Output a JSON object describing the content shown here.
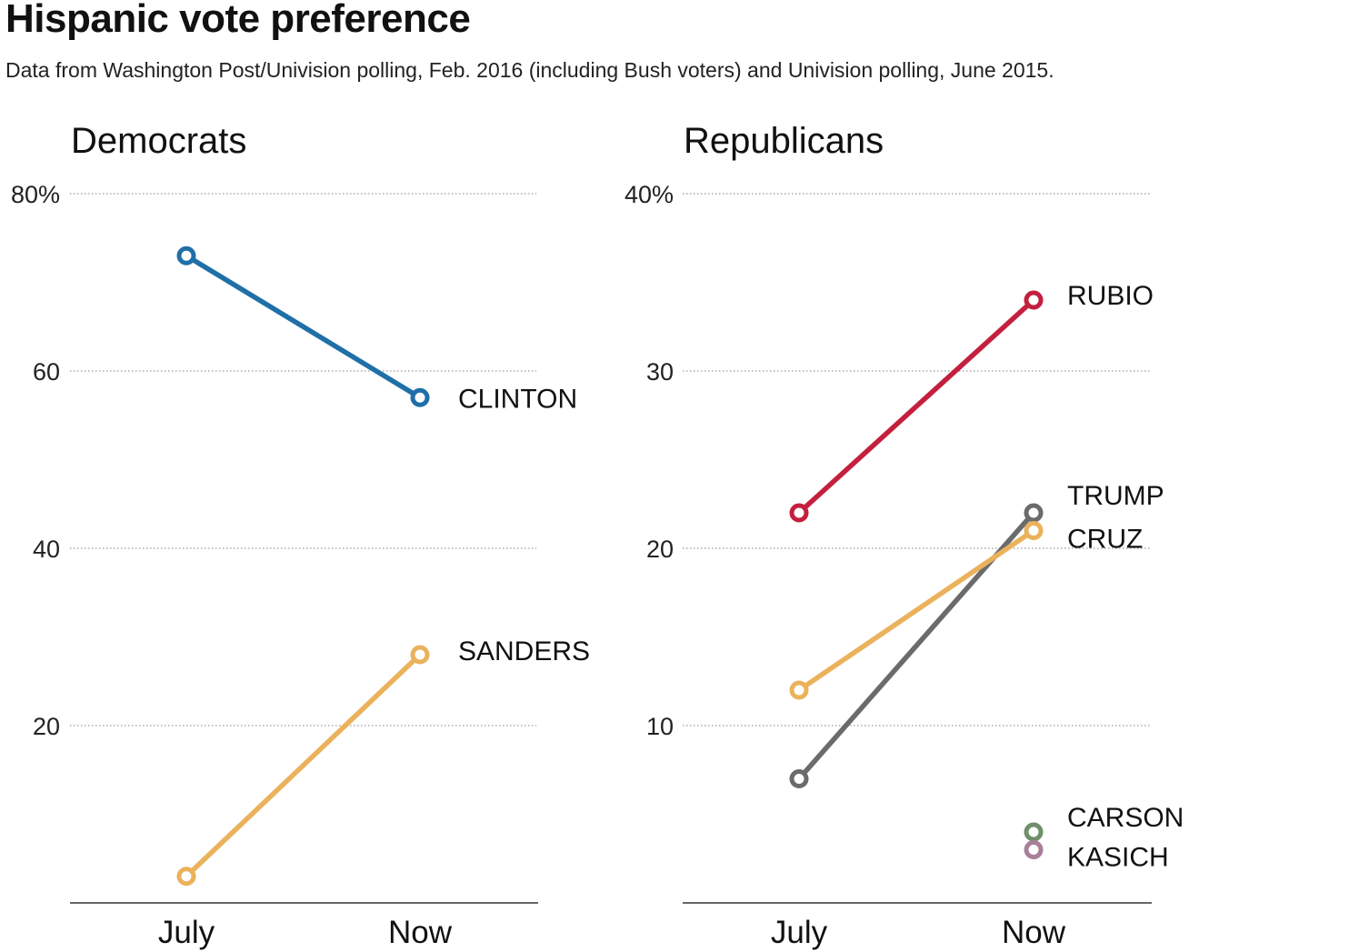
{
  "header": {
    "title": "Hispanic vote preference",
    "subtitle": "Data from Washington Post/Univision polling, Feb. 2016 (including Bush voters) and Univision polling, June 2015."
  },
  "chart_data": [
    {
      "type": "line",
      "title": "Democrats",
      "categories": [
        "July",
        "Now"
      ],
      "ylim": [
        0,
        80
      ],
      "yticks": [
        20,
        40,
        60,
        80
      ],
      "ytick_labels": [
        "20",
        "40",
        "60",
        "80%"
      ],
      "grid": true,
      "series": [
        {
          "name": "CLINTON",
          "color": "#1f6fa8",
          "values": [
            73,
            57
          ]
        },
        {
          "name": "SANDERS",
          "color": "#ebb25c",
          "values": [
            3,
            28
          ]
        }
      ]
    },
    {
      "type": "line",
      "title": "Republicans",
      "categories": [
        "July",
        "Now"
      ],
      "ylim": [
        0,
        40
      ],
      "yticks": [
        10,
        20,
        30,
        40
      ],
      "ytick_labels": [
        "10",
        "20",
        "30",
        "40%"
      ],
      "grid": true,
      "series": [
        {
          "name": "RUBIO",
          "color": "#c4203e",
          "values": [
            22,
            34
          ]
        },
        {
          "name": "TRUMP",
          "color": "#6b6b6b",
          "values": [
            7,
            22
          ]
        },
        {
          "name": "CRUZ",
          "color": "#ebb25c",
          "values": [
            12,
            21
          ]
        },
        {
          "name": "CARSON",
          "color": "#6f8f6a",
          "values": [
            null,
            4
          ]
        },
        {
          "name": "KASICH",
          "color": "#a87f9a",
          "values": [
            null,
            3
          ]
        }
      ]
    }
  ]
}
